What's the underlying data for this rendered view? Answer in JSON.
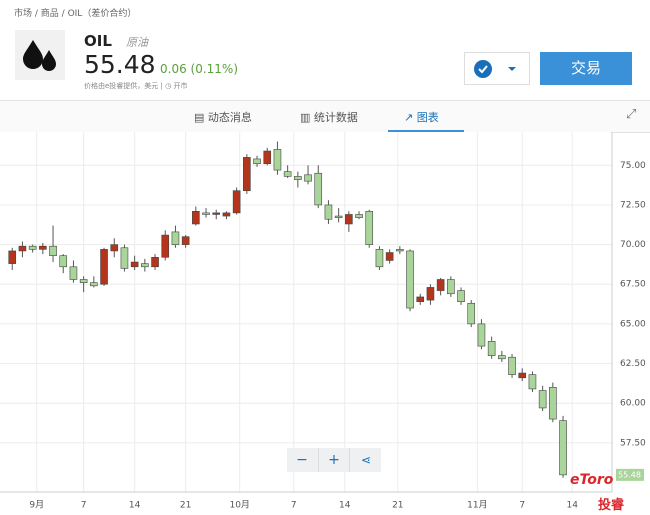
{
  "breadcrumb": [
    "市场",
    "商品",
    "OIL（差价合约）"
  ],
  "header": {
    "symbol": "OIL",
    "name": "原油",
    "price": "55.48",
    "change": "0.06 (0.11%)",
    "provider": "价格由e投睿提供，美元",
    "status": "开市",
    "trade_button": "交易"
  },
  "tabs": [
    "动态消息",
    "统计数据",
    "图表"
  ],
  "watermark": {
    "brand": "eToro",
    "name": "投睿"
  },
  "chart": {
    "type": "candlestick",
    "up_color": "#b5341c",
    "down_color": "#a9d49a",
    "grid": true,
    "ylim": [
      54.4,
      77.1
    ],
    "yticks": [
      {
        "value": 57.5,
        "label": "57.50"
      },
      {
        "value": 60,
        "label": "60.00"
      },
      {
        "value": 62.5,
        "label": "62.50"
      },
      {
        "value": 65,
        "label": "65.00"
      },
      {
        "value": 67.5,
        "label": "67.50"
      },
      {
        "value": 70,
        "label": "70.00"
      },
      {
        "value": 72.5,
        "label": "72.50"
      },
      {
        "value": 75,
        "label": "75.00"
      }
    ],
    "xlim": [
      -1.2,
      58.8
    ],
    "xticks": [
      {
        "value": 2.4,
        "label": "9月"
      },
      {
        "value": 7,
        "label": "7"
      },
      {
        "value": 12,
        "label": "14"
      },
      {
        "value": 17,
        "label": "21"
      },
      {
        "value": 22.3,
        "label": "10月"
      },
      {
        "value": 27.6,
        "label": "7"
      },
      {
        "value": 32.6,
        "label": "14"
      },
      {
        "value": 37.8,
        "label": "21"
      },
      {
        "value": 45.6,
        "label": "11月"
      },
      {
        "value": 50,
        "label": "7"
      },
      {
        "value": 54.9,
        "label": "14"
      }
    ],
    "last_price": 55.48,
    "last_label": "55.48",
    "candles": [
      {
        "open": 68.8,
        "high": 69.8,
        "low": 68.4,
        "close": 69.6
      },
      {
        "open": 69.6,
        "high": 70.2,
        "low": 69.2,
        "close": 69.9
      },
      {
        "open": 69.9,
        "high": 70.0,
        "low": 69.5,
        "close": 69.7
      },
      {
        "open": 69.7,
        "high": 70.1,
        "low": 69.4,
        "close": 69.9
      },
      {
        "open": 69.9,
        "high": 71.2,
        "low": 68.9,
        "close": 69.3
      },
      {
        "open": 69.3,
        "high": 69.4,
        "low": 68.2,
        "close": 68.6
      },
      {
        "open": 68.6,
        "high": 69.0,
        "low": 67.6,
        "close": 67.8
      },
      {
        "open": 67.8,
        "high": 68.0,
        "low": 67.0,
        "close": 67.6
      },
      {
        "open": 67.6,
        "high": 68.0,
        "low": 67.3,
        "close": 67.4
      },
      {
        "open": 67.5,
        "high": 69.8,
        "low": 67.4,
        "close": 69.7
      },
      {
        "open": 69.6,
        "high": 70.4,
        "low": 69.2,
        "close": 70.0
      },
      {
        "open": 69.8,
        "high": 70.0,
        "low": 68.3,
        "close": 68.5
      },
      {
        "open": 68.6,
        "high": 69.3,
        "low": 68.4,
        "close": 68.9
      },
      {
        "open": 68.8,
        "high": 69.1,
        "low": 68.3,
        "close": 68.6
      },
      {
        "open": 68.6,
        "high": 69.4,
        "low": 68.4,
        "close": 69.2
      },
      {
        "open": 69.2,
        "high": 70.9,
        "low": 69.0,
        "close": 70.6
      },
      {
        "open": 70.8,
        "high": 71.2,
        "low": 69.8,
        "close": 70.0
      },
      {
        "open": 70.0,
        "high": 70.6,
        "low": 69.8,
        "close": 70.5
      },
      {
        "open": 71.3,
        "high": 72.4,
        "low": 71.2,
        "close": 72.1
      },
      {
        "open": 72.0,
        "high": 72.3,
        "low": 71.7,
        "close": 71.9
      },
      {
        "open": 71.9,
        "high": 72.2,
        "low": 71.6,
        "close": 72.0
      },
      {
        "open": 71.8,
        "high": 72.1,
        "low": 71.6,
        "close": 72.0
      },
      {
        "open": 72.0,
        "high": 73.6,
        "low": 71.9,
        "close": 73.4
      },
      {
        "open": 73.4,
        "high": 75.7,
        "low": 73.2,
        "close": 75.5
      },
      {
        "open": 75.4,
        "high": 75.6,
        "low": 74.9,
        "close": 75.1
      },
      {
        "open": 75.1,
        "high": 76.1,
        "low": 75.0,
        "close": 75.9
      },
      {
        "open": 76.0,
        "high": 76.5,
        "low": 74.4,
        "close": 74.7
      },
      {
        "open": 74.6,
        "high": 75.0,
        "low": 74.2,
        "close": 74.3
      },
      {
        "open": 74.3,
        "high": 74.6,
        "low": 73.6,
        "close": 74.1
      },
      {
        "open": 74.4,
        "high": 75.0,
        "low": 73.8,
        "close": 74.0
      },
      {
        "open": 74.5,
        "high": 75.0,
        "low": 72.3,
        "close": 72.5
      },
      {
        "open": 72.5,
        "high": 72.8,
        "low": 71.3,
        "close": 71.6
      },
      {
        "open": 71.8,
        "high": 72.3,
        "low": 71.4,
        "close": 71.7
      },
      {
        "open": 71.3,
        "high": 72.1,
        "low": 70.8,
        "close": 71.9
      },
      {
        "open": 71.9,
        "high": 72.1,
        "low": 71.6,
        "close": 71.7
      },
      {
        "open": 72.1,
        "high": 72.2,
        "low": 69.8,
        "close": 70.0
      },
      {
        "open": 69.7,
        "high": 69.9,
        "low": 68.4,
        "close": 68.6
      },
      {
        "open": 69.0,
        "high": 69.7,
        "low": 68.8,
        "close": 69.5
      },
      {
        "open": 69.7,
        "high": 69.9,
        "low": 69.4,
        "close": 69.6
      },
      {
        "open": 69.6,
        "high": 69.7,
        "low": 65.8,
        "close": 66.0
      },
      {
        "open": 66.4,
        "high": 66.9,
        "low": 66.2,
        "close": 66.7
      },
      {
        "open": 66.5,
        "high": 67.5,
        "low": 66.2,
        "close": 67.3
      },
      {
        "open": 67.1,
        "high": 67.9,
        "low": 66.8,
        "close": 67.8
      },
      {
        "open": 67.8,
        "high": 68.0,
        "low": 66.7,
        "close": 66.9
      },
      {
        "open": 67.1,
        "high": 67.3,
        "low": 66.2,
        "close": 66.4
      },
      {
        "open": 66.3,
        "high": 66.5,
        "low": 64.8,
        "close": 65.0
      },
      {
        "open": 65.0,
        "high": 65.3,
        "low": 63.4,
        "close": 63.6
      },
      {
        "open": 63.9,
        "high": 64.2,
        "low": 62.8,
        "close": 63.0
      },
      {
        "open": 63.0,
        "high": 63.3,
        "low": 62.6,
        "close": 62.8
      },
      {
        "open": 62.9,
        "high": 63.1,
        "low": 61.6,
        "close": 61.8
      },
      {
        "open": 61.6,
        "high": 62.2,
        "low": 61.4,
        "close": 61.9
      },
      {
        "open": 61.8,
        "high": 62.0,
        "low": 60.7,
        "close": 60.9
      },
      {
        "open": 60.8,
        "high": 61.1,
        "low": 59.5,
        "close": 59.7
      },
      {
        "open": 61.0,
        "high": 61.3,
        "low": 58.8,
        "close": 59.0
      },
      {
        "open": 58.9,
        "high": 59.2,
        "low": 55.3,
        "close": 55.48
      }
    ]
  }
}
